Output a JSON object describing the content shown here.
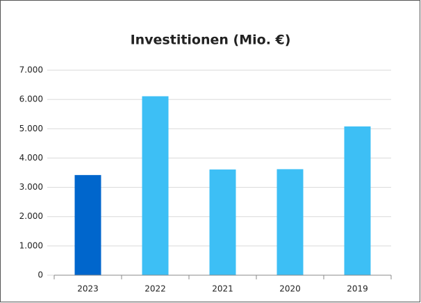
{
  "chart_data": {
    "type": "bar",
    "title": "Investitionen (Mio. €)",
    "categories": [
      "2023",
      "2022",
      "2021",
      "2020",
      "2019"
    ],
    "values": [
      3420,
      6110,
      3610,
      3620,
      5080
    ],
    "colors": [
      "#0066cc",
      "#3dbff5",
      "#3dbff5",
      "#3dbff5",
      "#3dbff5"
    ],
    "ylim": [
      0,
      7000
    ],
    "yticks": [
      0,
      {
        "value": 1000,
        "label": "1.000"
      },
      {
        "value": 2000,
        "label": "2.000"
      },
      {
        "value": 3000,
        "label": "3.000"
      },
      {
        "value": 4000,
        "label": "4.000"
      },
      {
        "value": 5000,
        "label": "5.000"
      },
      {
        "value": 6000,
        "label": "6.000"
      },
      {
        "value": 7000,
        "label": "7.000"
      }
    ],
    "grid": true
  }
}
